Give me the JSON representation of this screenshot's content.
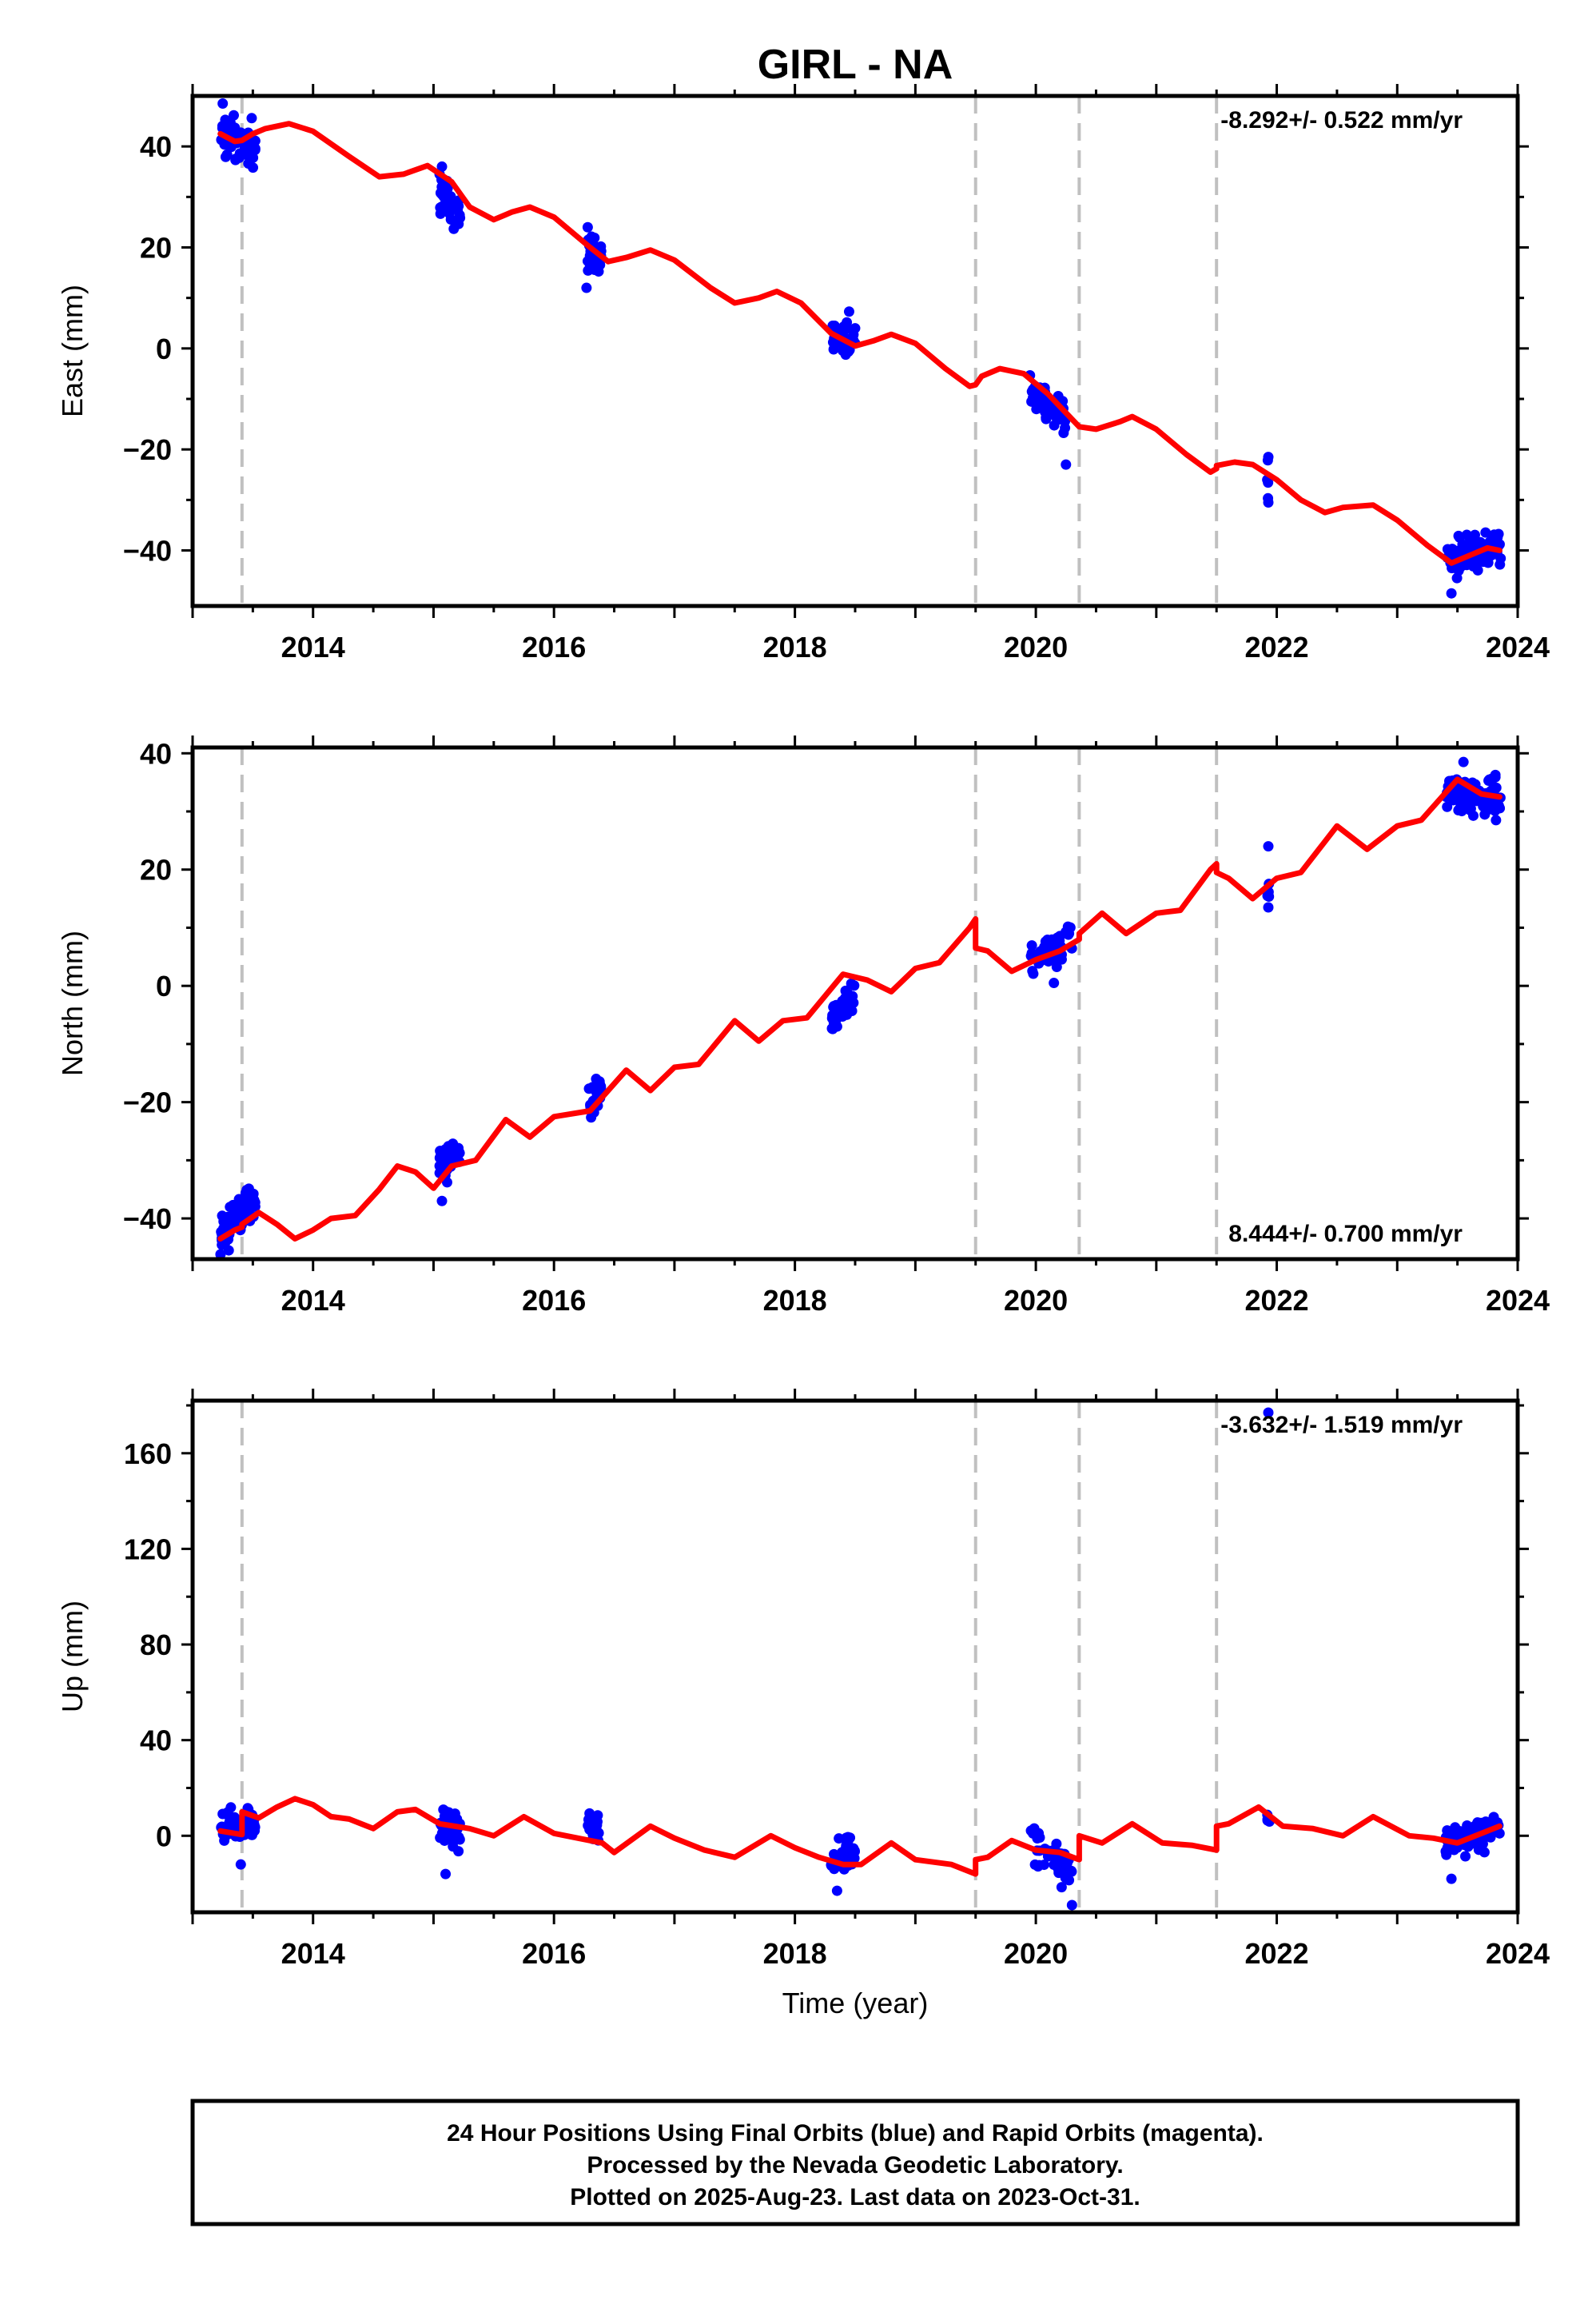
{
  "chart_data": {
    "type": "scatter",
    "title": "GIRL - NA",
    "xlabel": "Time (year)",
    "xlim": [
      2013.0,
      2024.0
    ],
    "x_ticks": [
      2014,
      2016,
      2018,
      2020,
      2022,
      2024
    ],
    "x_tick_labels": [
      "2014",
      "2016",
      "2018",
      "2020",
      "2022",
      "2024"
    ],
    "event_lines": [
      2013.41,
      2019.5,
      2020.36,
      2021.5
    ],
    "colors": {
      "data": "#0000ff",
      "model": "#ff0000",
      "event": "#c0c0c0"
    },
    "panels": [
      {
        "ylabel": "East (mm)",
        "ylim": [
          -51,
          50
        ],
        "y_ticks": [
          -40,
          -20,
          0,
          20,
          40
        ],
        "y_tick_labels": [
          "−40",
          "−20",
          "0",
          "20",
          "40"
        ],
        "rate": "-8.292+/- 0.522 mm/yr",
        "rate_position": "top-right",
        "model": [
          [
            2013.23,
            42.5
          ],
          [
            2013.35,
            41
          ],
          [
            2013.41,
            41.2
          ],
          [
            2013.5,
            42.5
          ],
          [
            2013.6,
            43.5
          ],
          [
            2013.8,
            44.5
          ],
          [
            2014.0,
            43
          ],
          [
            2014.3,
            38
          ],
          [
            2014.55,
            34
          ],
          [
            2014.75,
            34.5
          ],
          [
            2014.95,
            36.2
          ],
          [
            2015.15,
            33
          ],
          [
            2015.3,
            28
          ],
          [
            2015.5,
            25.5
          ],
          [
            2015.65,
            27
          ],
          [
            2015.8,
            28
          ],
          [
            2016.0,
            26
          ],
          [
            2016.3,
            20
          ],
          [
            2016.45,
            17.2
          ],
          [
            2016.6,
            18
          ],
          [
            2016.8,
            19.5
          ],
          [
            2017.0,
            17.5
          ],
          [
            2017.3,
            12
          ],
          [
            2017.5,
            9
          ],
          [
            2017.7,
            10
          ],
          [
            2017.85,
            11.3
          ],
          [
            2018.05,
            9
          ],
          [
            2018.3,
            3
          ],
          [
            2018.5,
            0.5
          ],
          [
            2018.65,
            1.5
          ],
          [
            2018.8,
            2.8
          ],
          [
            2019.0,
            1
          ],
          [
            2019.25,
            -4
          ],
          [
            2019.45,
            -7.5
          ],
          [
            2019.5,
            -7.2
          ],
          [
            2019.55,
            -5.5
          ],
          [
            2019.7,
            -4
          ],
          [
            2019.9,
            -5
          ],
          [
            2020.1,
            -9
          ],
          [
            2020.3,
            -14
          ],
          [
            2020.36,
            -15.5
          ],
          [
            2020.5,
            -16
          ],
          [
            2020.7,
            -14.5
          ],
          [
            2020.8,
            -13.5
          ],
          [
            2021.0,
            -16
          ],
          [
            2021.25,
            -21
          ],
          [
            2021.45,
            -24.5
          ],
          [
            2021.5,
            -23.8
          ],
          [
            2021.5,
            -23.2
          ],
          [
            2021.65,
            -22.5
          ],
          [
            2021.8,
            -23
          ],
          [
            2022.0,
            -26
          ],
          [
            2022.2,
            -30
          ],
          [
            2022.4,
            -32.5
          ],
          [
            2022.55,
            -31.5
          ],
          [
            2022.8,
            -31
          ],
          [
            2023.0,
            -34
          ],
          [
            2023.25,
            -39
          ],
          [
            2023.45,
            -42.5
          ],
          [
            2023.6,
            -41
          ],
          [
            2023.75,
            -39.5
          ],
          [
            2023.85,
            -40
          ]
        ],
        "samples": [
          {
            "t0": 2013.23,
            "t1": 2013.52,
            "n": 70,
            "center": [
              42,
              40
            ],
            "spread": 3
          },
          {
            "t0": 2015.05,
            "t1": 2015.22,
            "n": 40,
            "center": [
              31,
              26
            ],
            "spread": 2.5
          },
          {
            "t0": 2016.28,
            "t1": 2016.4,
            "n": 30,
            "center": [
              19,
              17.5
            ],
            "spread": 2.2
          },
          {
            "t0": 2018.3,
            "t1": 2018.5,
            "n": 40,
            "center": [
              2,
              1.5
            ],
            "spread": 1.8
          },
          {
            "t0": 2019.95,
            "t1": 2020.25,
            "n": 45,
            "center": [
              -8,
              -14
            ],
            "spread": 2.5
          },
          {
            "t0": 2021.92,
            "t1": 2021.94,
            "n": 4,
            "center": [
              -25,
              -25
            ],
            "spread": 3
          },
          {
            "t0": 2023.4,
            "t1": 2023.86,
            "n": 90,
            "center": [
              -41,
              -39
            ],
            "spread": 2.3
          }
        ],
        "outliers": [
          [
            2013.25,
            48.5
          ],
          [
            2015.07,
            36
          ],
          [
            2016.28,
            24
          ],
          [
            2016.27,
            12
          ],
          [
            2018.45,
            7.3
          ],
          [
            2020.25,
            -23
          ],
          [
            2021.93,
            -30.5
          ],
          [
            2021.93,
            -21.5
          ],
          [
            2023.45,
            -48.5
          ]
        ]
      },
      {
        "ylabel": "North (mm)",
        "ylim": [
          -47,
          41
        ],
        "y_ticks": [
          -40,
          -20,
          0,
          20,
          40
        ],
        "y_tick_labels": [
          "−40",
          "−20",
          "0",
          "20",
          "40"
        ],
        "rate": "8.444+/- 0.700 mm/yr",
        "rate_position": "bottom-right",
        "model": [
          [
            2013.23,
            -43.5
          ],
          [
            2013.35,
            -42
          ],
          [
            2013.41,
            -41.5
          ],
          [
            2013.41,
            -41
          ],
          [
            2013.55,
            -39
          ],
          [
            2013.7,
            -41
          ],
          [
            2013.85,
            -43.5
          ],
          [
            2014.0,
            -42
          ],
          [
            2014.15,
            -40
          ],
          [
            2014.35,
            -39.5
          ],
          [
            2014.55,
            -35
          ],
          [
            2014.7,
            -31
          ],
          [
            2014.85,
            -32
          ],
          [
            2015.0,
            -34.8
          ],
          [
            2015.15,
            -31
          ],
          [
            2015.35,
            -30
          ],
          [
            2015.6,
            -23
          ],
          [
            2015.8,
            -26
          ],
          [
            2016.0,
            -22.5
          ],
          [
            2016.3,
            -21.5
          ],
          [
            2016.6,
            -14.5
          ],
          [
            2016.8,
            -18
          ],
          [
            2017.0,
            -14
          ],
          [
            2017.2,
            -13.5
          ],
          [
            2017.5,
            -6
          ],
          [
            2017.7,
            -9.5
          ],
          [
            2017.9,
            -6
          ],
          [
            2018.1,
            -5.5
          ],
          [
            2018.4,
            2
          ],
          [
            2018.6,
            1
          ],
          [
            2018.8,
            -1
          ],
          [
            2019.0,
            3
          ],
          [
            2019.2,
            4
          ],
          [
            2019.45,
            10
          ],
          [
            2019.5,
            11.5
          ],
          [
            2019.5,
            6.5
          ],
          [
            2019.6,
            6
          ],
          [
            2019.8,
            2.5
          ],
          [
            2020.0,
            4.5
          ],
          [
            2020.2,
            6
          ],
          [
            2020.36,
            8
          ],
          [
            2020.36,
            9
          ],
          [
            2020.55,
            12.5
          ],
          [
            2020.75,
            9
          ],
          [
            2021.0,
            12.5
          ],
          [
            2021.2,
            13
          ],
          [
            2021.45,
            20
          ],
          [
            2021.5,
            21
          ],
          [
            2021.5,
            19.5
          ],
          [
            2021.6,
            18.5
          ],
          [
            2021.8,
            15
          ],
          [
            2022.0,
            18.5
          ],
          [
            2022.2,
            19.5
          ],
          [
            2022.5,
            27.5
          ],
          [
            2022.75,
            23.5
          ],
          [
            2023.0,
            27.5
          ],
          [
            2023.2,
            28.5
          ],
          [
            2023.5,
            35.5
          ],
          [
            2023.7,
            33
          ],
          [
            2023.85,
            32.5
          ]
        ],
        "samples": [
          {
            "t0": 2013.23,
            "t1": 2013.52,
            "n": 70,
            "center": [
              -43,
              -37
            ],
            "spread": 2.2
          },
          {
            "t0": 2015.05,
            "t1": 2015.22,
            "n": 40,
            "center": [
              -31,
              -29
            ],
            "spread": 2
          },
          {
            "t0": 2016.28,
            "t1": 2016.4,
            "n": 30,
            "center": [
              -21,
              -18
            ],
            "spread": 1.8
          },
          {
            "t0": 2018.3,
            "t1": 2018.5,
            "n": 40,
            "center": [
              -6,
              -1
            ],
            "spread": 1.5
          },
          {
            "t0": 2019.95,
            "t1": 2020.3,
            "n": 45,
            "center": [
              4,
              8
            ],
            "spread": 2
          },
          {
            "t0": 2021.92,
            "t1": 2021.94,
            "n": 4,
            "center": [
              17,
              17
            ],
            "spread": 2.5
          },
          {
            "t0": 2023.4,
            "t1": 2023.86,
            "n": 90,
            "center": [
              33,
              33
            ],
            "spread": 2.2
          }
        ],
        "outliers": [
          [
            2013.3,
            -45.5
          ],
          [
            2015.07,
            -37
          ],
          [
            2016.35,
            -16
          ],
          [
            2018.35,
            -7
          ],
          [
            2020.15,
            0.5
          ],
          [
            2021.93,
            24
          ],
          [
            2021.93,
            13.5
          ],
          [
            2023.55,
            38.5
          ],
          [
            2023.82,
            28.5
          ]
        ]
      },
      {
        "ylabel": "Up (mm)",
        "ylim": [
          -32,
          182
        ],
        "y_ticks": [
          0,
          40,
          80,
          120,
          160
        ],
        "y_tick_labels": [
          "0",
          "40",
          "80",
          "120",
          "160"
        ],
        "rate": "-3.632+/- 1.519 mm/yr",
        "rate_position": "top-right",
        "model": [
          [
            2013.23,
            2
          ],
          [
            2013.35,
            1
          ],
          [
            2013.41,
            0.5
          ],
          [
            2013.41,
            10
          ],
          [
            2013.55,
            7.5
          ],
          [
            2013.7,
            12
          ],
          [
            2013.85,
            15.5
          ],
          [
            2014.0,
            13
          ],
          [
            2014.15,
            8
          ],
          [
            2014.3,
            7
          ],
          [
            2014.5,
            3
          ],
          [
            2014.7,
            10
          ],
          [
            2014.85,
            11
          ],
          [
            2015.05,
            5
          ],
          [
            2015.3,
            3
          ],
          [
            2015.5,
            0
          ],
          [
            2015.75,
            8
          ],
          [
            2016.0,
            1
          ],
          [
            2016.2,
            -1
          ],
          [
            2016.4,
            -3
          ],
          [
            2016.5,
            -7
          ],
          [
            2016.8,
            4
          ],
          [
            2017.0,
            -1
          ],
          [
            2017.25,
            -6
          ],
          [
            2017.5,
            -9
          ],
          [
            2017.8,
            0
          ],
          [
            2018.0,
            -5
          ],
          [
            2018.2,
            -9
          ],
          [
            2018.4,
            -12
          ],
          [
            2018.55,
            -12
          ],
          [
            2018.8,
            -3
          ],
          [
            2019.0,
            -10
          ],
          [
            2019.3,
            -12
          ],
          [
            2019.5,
            -16
          ],
          [
            2019.5,
            -10
          ],
          [
            2019.6,
            -9
          ],
          [
            2019.8,
            -2
          ],
          [
            2020.0,
            -6
          ],
          [
            2020.2,
            -7
          ],
          [
            2020.36,
            -10
          ],
          [
            2020.36,
            0
          ],
          [
            2020.55,
            -3
          ],
          [
            2020.8,
            5
          ],
          [
            2021.05,
            -3
          ],
          [
            2021.3,
            -4
          ],
          [
            2021.5,
            -6
          ],
          [
            2021.5,
            4
          ],
          [
            2021.6,
            5
          ],
          [
            2021.85,
            12
          ],
          [
            2022.05,
            4
          ],
          [
            2022.3,
            3
          ],
          [
            2022.55,
            0
          ],
          [
            2022.8,
            8
          ],
          [
            2023.1,
            0
          ],
          [
            2023.3,
            -1
          ],
          [
            2023.5,
            -3
          ],
          [
            2023.7,
            1
          ],
          [
            2023.85,
            4
          ]
        ],
        "samples": [
          {
            "t0": 2013.23,
            "t1": 2013.52,
            "n": 70,
            "center": [
              3,
              5
            ],
            "spread": 4.5
          },
          {
            "t0": 2015.05,
            "t1": 2015.22,
            "n": 40,
            "center": [
              3,
              2
            ],
            "spread": 4.5
          },
          {
            "t0": 2016.28,
            "t1": 2016.4,
            "n": 30,
            "center": [
              5,
              3
            ],
            "spread": 3.5
          },
          {
            "t0": 2018.3,
            "t1": 2018.5,
            "n": 40,
            "center": [
              -8,
              -7
            ],
            "spread": 4
          },
          {
            "t0": 2019.95,
            "t1": 2020.3,
            "n": 45,
            "center": [
              -3,
              -15
            ],
            "spread": 5
          },
          {
            "t0": 2021.92,
            "t1": 2021.94,
            "n": 4,
            "center": [
              8,
              8
            ],
            "spread": 3
          },
          {
            "t0": 2023.4,
            "t1": 2023.86,
            "n": 90,
            "center": [
              -3,
              3
            ],
            "spread": 4
          }
        ],
        "outliers": [
          [
            2021.93,
            177
          ],
          [
            2018.35,
            -23
          ],
          [
            2020.3,
            -29
          ],
          [
            2013.4,
            -12
          ],
          [
            2015.1,
            -16
          ],
          [
            2023.45,
            -18
          ]
        ]
      }
    ]
  },
  "caption": {
    "line1": "24 Hour Positions Using Final Orbits (blue) and Rapid Orbits (magenta).",
    "line2": "Processed by the Nevada Geodetic Laboratory.",
    "line3": "Plotted on 2025-Aug-23. Last data on 2023-Oct-31."
  }
}
